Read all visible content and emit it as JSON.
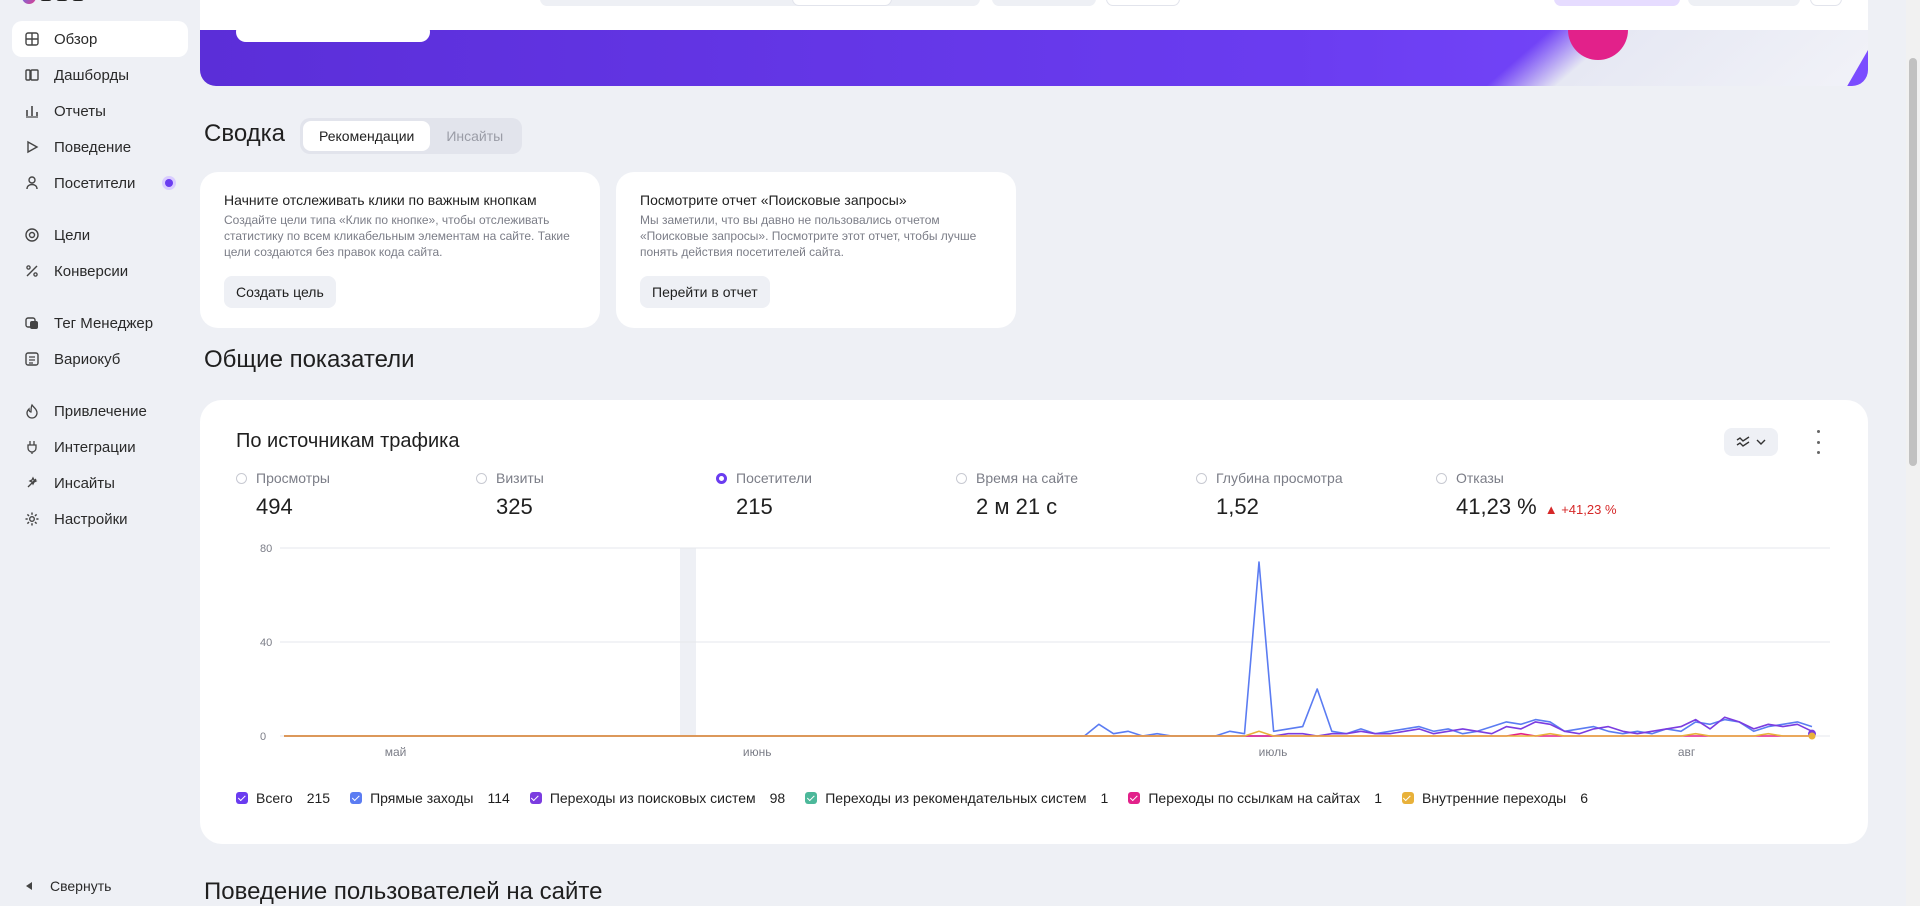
{
  "sidebar": {
    "items": [
      {
        "label": "Обзор",
        "icon": "grid-icon"
      },
      {
        "label": "Дашборды",
        "icon": "dashboards-icon"
      },
      {
        "label": "Отчеты",
        "icon": "bar-chart-icon"
      },
      {
        "label": "Поведение",
        "icon": "play-icon"
      },
      {
        "label": "Посетители",
        "icon": "user-icon"
      },
      {
        "label": "Цели",
        "icon": "target-icon"
      },
      {
        "label": "Конверсии",
        "icon": "percent-icon"
      },
      {
        "label": "Тег Менеджер",
        "icon": "tag-manager-icon"
      },
      {
        "label": "Вариокуб",
        "icon": "cube-icon"
      },
      {
        "label": "Привлечение",
        "icon": "flame-icon"
      },
      {
        "label": "Интеграции",
        "icon": "plug-icon"
      },
      {
        "label": "Инсайты",
        "icon": "sparkle-icon"
      },
      {
        "label": "Настройки",
        "icon": "gear-icon"
      }
    ],
    "collapse_label": "Свернуть"
  },
  "summary": {
    "title": "Сводка",
    "tabs": [
      "Рекомендации",
      "Инсайты"
    ],
    "cards": [
      {
        "title": "Начните отслеживать клики по важным кнопкам",
        "text": "Создайте цели типа «Клик по кнопке», чтобы отслеживать статистику по всем кликабельным элементам на сайте. Такие цели создаются без правок кода сайта.",
        "button": "Создать цель"
      },
      {
        "title": "Посмотрите отчет «Поисковые запросы»",
        "text": "Мы заметили, что вы давно не пользовались отчетом «Поисковые запросы». Посмотрите этот отчет, чтобы лучше понять действия посетителей сайта.",
        "button": "Перейти в отчет"
      }
    ]
  },
  "general": {
    "title": "Общие показатели",
    "card_title": "По источникам трафика",
    "metrics": [
      {
        "label": "Просмотры",
        "value": "494",
        "selected": false
      },
      {
        "label": "Визиты",
        "value": "325",
        "selected": false
      },
      {
        "label": "Посетители",
        "value": "215",
        "selected": true
      },
      {
        "label": "Время на сайте",
        "value": "2 м 21 с",
        "selected": false
      },
      {
        "label": "Глубина просмотра",
        "value": "1,52",
        "selected": false
      },
      {
        "label": "Отказы",
        "value": "41,23 %",
        "selected": false,
        "delta": "▲ +41,23 %"
      }
    ],
    "legend": [
      {
        "label": "Всего",
        "count": "215",
        "color": "#6a3cf0"
      },
      {
        "label": "Прямые заходы",
        "count": "114",
        "color": "#5b7cf2"
      },
      {
        "label": "Переходы из поисковых систем",
        "count": "98",
        "color": "#7b3ce0"
      },
      {
        "label": "Переходы из рекомендательных систем",
        "count": "1",
        "color": "#4cb89a"
      },
      {
        "label": "Переходы по ссылкам на сайтах",
        "count": "1",
        "color": "#e2218a"
      },
      {
        "label": "Внутренние переходы",
        "count": "6",
        "color": "#e8b13a"
      }
    ]
  },
  "behavior_title": "Поведение пользователей на сайте",
  "chart_data": {
    "type": "line",
    "ylim": [
      0,
      80
    ],
    "yticks": [
      0,
      40,
      80
    ],
    "x_tick_labels": [
      "май",
      "июнь",
      "июль",
      "авг"
    ],
    "grid": true,
    "series": [
      {
        "name": "Прямые заходы",
        "color": "#5b7cf2",
        "values": [
          0,
          0,
          0,
          0,
          0,
          0,
          0,
          0,
          0,
          0,
          0,
          0,
          0,
          0,
          0,
          0,
          0,
          0,
          0,
          0,
          0,
          0,
          0,
          0,
          0,
          0,
          0,
          0,
          0,
          0,
          0,
          0,
          0,
          0,
          0,
          0,
          0,
          0,
          0,
          0,
          0,
          0,
          0,
          0,
          0,
          0,
          0,
          0,
          0,
          0,
          0,
          0,
          0,
          0,
          0,
          0,
          5,
          1,
          2,
          0,
          1,
          0,
          0,
          0,
          0,
          2,
          1,
          74,
          2,
          3,
          4,
          20,
          2,
          1,
          3,
          1,
          2,
          3,
          4,
          2,
          3,
          1,
          2,
          4,
          6,
          5,
          7,
          6,
          2,
          3,
          4,
          2,
          1,
          2,
          1,
          3,
          2,
          6,
          5,
          7,
          6,
          2,
          4,
          5,
          6,
          4
        ]
      },
      {
        "name": "Переходы из поисковых систем",
        "color": "#7b3ce0",
        "values": [
          0,
          0,
          0,
          0,
          0,
          0,
          0,
          0,
          0,
          0,
          0,
          0,
          0,
          0,
          0,
          0,
          0,
          0,
          0,
          0,
          0,
          0,
          0,
          0,
          0,
          0,
          0,
          0,
          0,
          0,
          0,
          0,
          0,
          0,
          0,
          0,
          0,
          0,
          0,
          0,
          0,
          0,
          0,
          0,
          0,
          0,
          0,
          0,
          0,
          0,
          0,
          0,
          0,
          0,
          0,
          0,
          0,
          0,
          0,
          0,
          0,
          0,
          0,
          0,
          0,
          0,
          0,
          0,
          0,
          1,
          1,
          0,
          1,
          1,
          2,
          1,
          1,
          2,
          3,
          1,
          2,
          3,
          2,
          1,
          4,
          3,
          6,
          5,
          2,
          1,
          3,
          4,
          2,
          1,
          2,
          3,
          4,
          7,
          3,
          8,
          6,
          3,
          5,
          4,
          5,
          2
        ]
      },
      {
        "name": "Переходы по ссылкам на сайтах",
        "color": "#e2218a",
        "values": [
          0,
          0,
          0,
          0,
          0,
          0,
          0,
          0,
          0,
          0,
          0,
          0,
          0,
          0,
          0,
          0,
          0,
          0,
          0,
          0,
          0,
          0,
          0,
          0,
          0,
          0,
          0,
          0,
          0,
          0,
          0,
          0,
          0,
          0,
          0,
          0,
          0,
          0,
          0,
          0,
          0,
          0,
          0,
          0,
          0,
          0,
          0,
          0,
          0,
          0,
          0,
          0,
          0,
          0,
          0,
          0,
          0,
          0,
          0,
          0,
          0,
          0,
          0,
          0,
          0,
          0,
          0,
          0,
          0,
          0,
          0,
          0,
          0,
          0,
          0,
          0,
          0,
          0,
          0,
          0,
          0,
          0,
          0,
          0,
          0,
          1,
          0,
          0,
          0,
          0,
          0,
          0,
          0,
          0,
          0,
          0,
          0,
          0,
          0,
          0,
          0,
          0,
          0,
          0,
          0,
          0
        ]
      },
      {
        "name": "Внутренние переходы",
        "color": "#e8b13a",
        "values": [
          0,
          0,
          0,
          0,
          0,
          0,
          0,
          0,
          0,
          0,
          0,
          0,
          0,
          0,
          0,
          0,
          0,
          0,
          0,
          0,
          0,
          0,
          0,
          0,
          0,
          0,
          0,
          0,
          0,
          0,
          0,
          0,
          0,
          0,
          0,
          0,
          0,
          0,
          0,
          0,
          0,
          0,
          0,
          0,
          0,
          0,
          0,
          0,
          0,
          0,
          0,
          0,
          0,
          0,
          0,
          0,
          0,
          0,
          0,
          0,
          0,
          0,
          0,
          0,
          0,
          0,
          0,
          2,
          0,
          0,
          0,
          0,
          0,
          0,
          0,
          0,
          0,
          0,
          0,
          0,
          0,
          0,
          0,
          0,
          0,
          0,
          0,
          1,
          0,
          0,
          0,
          0,
          0,
          0,
          0,
          0,
          0,
          1,
          0,
          0,
          0,
          0,
          1,
          0,
          0,
          0
        ]
      }
    ]
  }
}
